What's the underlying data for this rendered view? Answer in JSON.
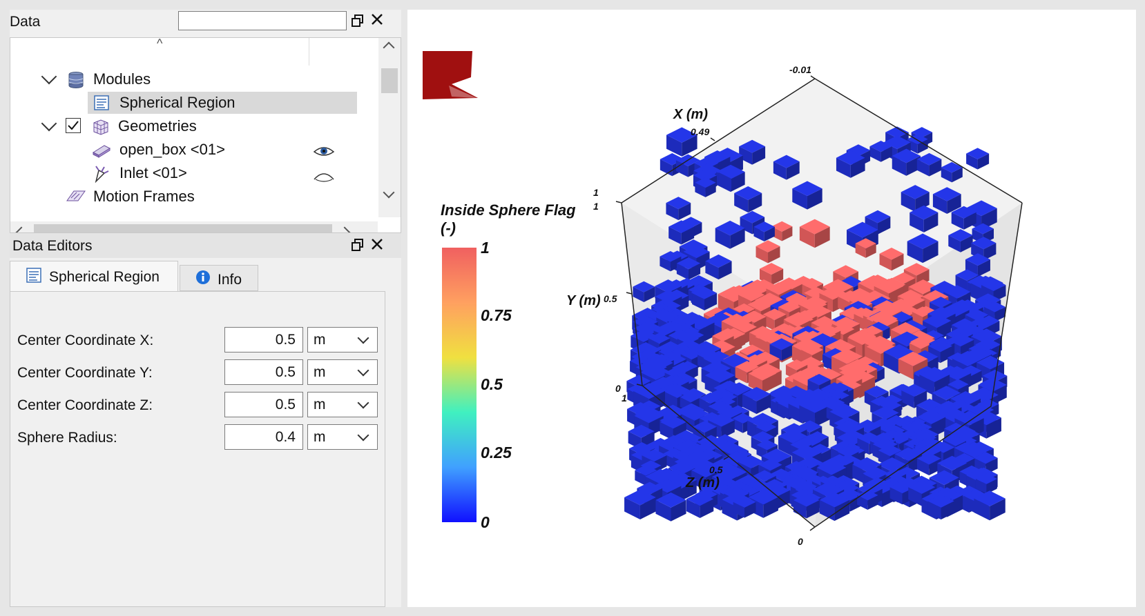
{
  "data_panel": {
    "title": "Data",
    "search_value": "",
    "float_icon": "restore-window-icon",
    "close_icon": "close-icon",
    "tree": [
      {
        "label": "Modules",
        "icon": "database-icon",
        "expanded": true
      },
      {
        "label": "Spherical Region",
        "icon": "form-icon",
        "selected": true
      },
      {
        "label": "Geometries",
        "icon": "grid-cube-icon",
        "expanded": true,
        "checked": true
      },
      {
        "label": "open_box <01>",
        "icon": "box-icon",
        "visibility": "eye-open-icon"
      },
      {
        "label": "Inlet <01>",
        "icon": "inlet-icon",
        "visibility": "eye-closed-icon"
      },
      {
        "label": "Motion Frames",
        "icon": "motion-frames-icon"
      }
    ]
  },
  "editors_panel": {
    "title": "Data Editors",
    "tabs": [
      {
        "label": "Spherical Region",
        "icon": "form-icon",
        "active": true
      },
      {
        "label": "Info",
        "icon": "info-icon",
        "active": false
      }
    ],
    "fields": [
      {
        "label": "Center Coordinate X:",
        "value": "0.5",
        "unit": "m"
      },
      {
        "label": "Center Coordinate Y:",
        "value": "0.5",
        "unit": "m"
      },
      {
        "label": "Center Coordinate Z:",
        "value": "0.5",
        "unit": "m"
      },
      {
        "label": "Sphere Radius:",
        "value": "0.4",
        "unit": "m"
      }
    ]
  },
  "viewport": {
    "logo": "red-flag-logo",
    "colorbar": {
      "title_line1": "Inside Sphere Flag",
      "title_line2": "(-)",
      "ticks": [
        "1",
        "0.75",
        "0.5",
        "0.25",
        "0"
      ],
      "colors": [
        "#f06060",
        "#ffa060",
        "#f0e040",
        "#40f0c0",
        "#40a0ff",
        "#1010ff"
      ]
    },
    "axes": {
      "x_label": "X (m)",
      "y_label": "Y (m)",
      "z_label": "Z (m)",
      "ticks": {
        "x_top": "-0.01",
        "x_mid": "0.49",
        "y_top_a": "1",
        "y_top_b": "1",
        "y_mid": "0.5",
        "y_zero": "0",
        "z_one": "1",
        "z_mid": "0.5",
        "z_zero": "0"
      }
    },
    "inside_color": "#e86060",
    "outside_color": "#2030d0"
  }
}
